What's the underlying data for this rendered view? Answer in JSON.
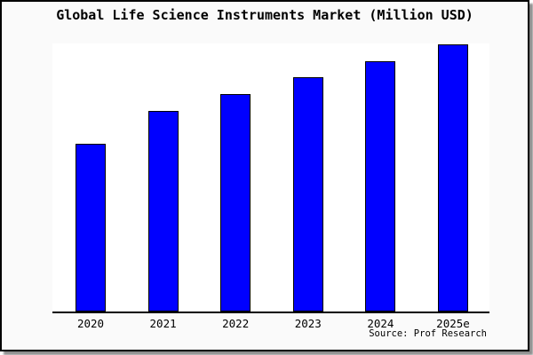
{
  "title": "Global Life Science Instruments Market (Million USD)",
  "source": "Source: Prof Research",
  "chart_data": {
    "type": "bar",
    "title": "Global Life Science Instruments Market (Million USD)",
    "categories": [
      "2020",
      "2021",
      "2022",
      "2023",
      "2024",
      "2025e"
    ],
    "values": [
      189,
      226,
      245,
      264,
      282,
      301
    ],
    "value_note": "no numeric y-axis or data labels shown; values estimated as bar heights in screen pixels",
    "xlabel": "",
    "ylabel": "",
    "ylim": [
      0,
      302
    ],
    "grid": false,
    "legend": false,
    "annotations": [
      "Source: Prof Research"
    ],
    "colors": {
      "bar_fill": "#0000ff",
      "bar_border": "#000000",
      "axis": "#000000",
      "plot_bg": "#ffffff",
      "chart_bg": "#fafafa",
      "text": "#000000"
    }
  }
}
